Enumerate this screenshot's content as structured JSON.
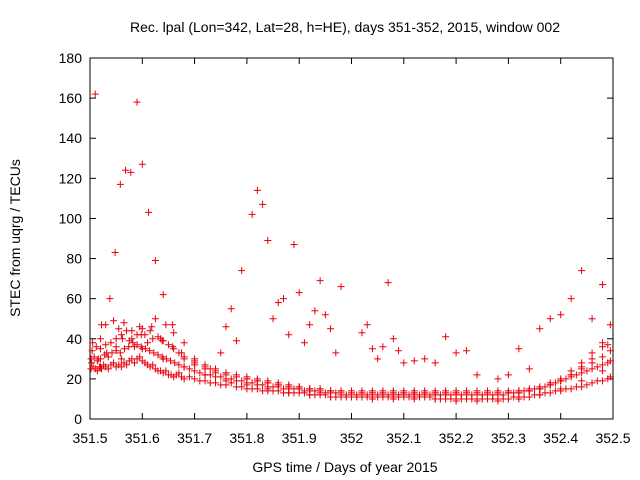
{
  "chart_data": {
    "type": "scatter",
    "title": "Rec. lpal (Lon=342, Lat=28, h=HE), days 351-352, 2015, window 002",
    "xlabel": "GPS time / Days of year 2015",
    "ylabel": "STEC from uqrg / TECUs",
    "xlim": [
      351.5,
      352.5
    ],
    "ylim": [
      0,
      180
    ],
    "x_ticks": [
      "351.5",
      "351.6",
      "351.7",
      "351.8",
      "351.9",
      "352",
      "352.1",
      "352.2",
      "352.3",
      "352.4",
      "352.5"
    ],
    "y_ticks": [
      "0",
      "20",
      "40",
      "60",
      "80",
      "100",
      "120",
      "140",
      "160",
      "180"
    ],
    "grid": false,
    "marker": "+",
    "color": "#e8000b",
    "series": [
      {
        "x": [
          351.502,
          351.506,
          351.51,
          351.514,
          351.518,
          351.522,
          351.526,
          351.53,
          351.535,
          351.54,
          351.545,
          351.55,
          351.555,
          351.56,
          351.565,
          351.57,
          351.575,
          351.58,
          351.585,
          351.59,
          351.595,
          351.6,
          351.605,
          351.61,
          351.615,
          351.62,
          351.625,
          351.63,
          351.635,
          351.64,
          351.645,
          351.65,
          351.655,
          351.66,
          351.665,
          351.67,
          351.675,
          351.68,
          351.69,
          351.7,
          351.71,
          351.72,
          351.73,
          351.74,
          351.75,
          351.76,
          351.77,
          351.78,
          351.79,
          351.8,
          351.81,
          351.82,
          351.83,
          351.84,
          351.85,
          351.86,
          351.87,
          351.88,
          351.89,
          351.9,
          351.91,
          351.92,
          351.93,
          351.94,
          351.95,
          351.96,
          351.97,
          351.98,
          351.99,
          352.0,
          352.01,
          352.02,
          352.03,
          352.04,
          352.05,
          352.06,
          352.07,
          352.08,
          352.09,
          352.1,
          352.11,
          352.12,
          352.13,
          352.14,
          352.15,
          352.16,
          352.17,
          352.18,
          352.19,
          352.2,
          352.21,
          352.22,
          352.23,
          352.24,
          352.25,
          352.26,
          352.27,
          352.28,
          352.29,
          352.3,
          352.31,
          352.32,
          352.33,
          352.34,
          352.35,
          352.36,
          352.37,
          352.38,
          352.39,
          352.4,
          352.41,
          352.42,
          352.43,
          352.44,
          352.45,
          352.46,
          352.47,
          352.48,
          352.49,
          352.495
        ],
        "y": [
          25,
          26,
          25,
          24,
          26,
          25,
          27,
          26,
          25,
          27,
          28,
          26,
          27,
          26,
          28,
          27,
          29,
          30,
          28,
          30,
          31,
          29,
          28,
          27,
          26,
          27,
          25,
          24,
          24,
          23,
          24,
          22,
          22,
          21,
          22,
          23,
          21,
          20,
          21,
          20,
          19,
          19,
          18,
          18,
          17,
          17,
          18,
          16,
          16,
          15,
          15,
          15,
          14,
          14,
          14,
          14,
          13,
          13,
          13,
          13,
          13,
          12,
          12,
          12,
          12,
          11,
          11,
          11,
          11,
          11,
          11,
          11,
          11,
          11,
          11,
          11,
          11,
          11,
          11,
          11,
          11,
          11,
          11,
          11,
          11,
          10,
          10,
          10,
          10,
          10,
          10,
          10,
          10,
          10,
          10,
          10,
          10,
          10,
          10,
          10,
          11,
          11,
          11,
          11,
          12,
          12,
          13,
          13,
          14,
          14,
          15,
          15,
          16,
          16,
          17,
          18,
          19,
          19,
          20,
          21
        ]
      },
      {
        "x": [
          351.502,
          351.508,
          351.514,
          351.52,
          351.528,
          351.535,
          351.542,
          351.55,
          351.558,
          351.566,
          351.574,
          351.582,
          351.59,
          351.598,
          351.606,
          351.614,
          351.622,
          351.63,
          351.638,
          351.646,
          351.654,
          351.662,
          351.67,
          351.68,
          351.69,
          351.7,
          351.71,
          351.72,
          351.73,
          351.74,
          351.75,
          351.76,
          351.77,
          351.78,
          351.79,
          351.8,
          351.81,
          351.82,
          351.83,
          351.84,
          351.85,
          351.86,
          351.87,
          351.88,
          351.89,
          351.9,
          351.91,
          351.92,
          351.93,
          351.94,
          351.95,
          351.96,
          351.97,
          351.98,
          351.99,
          352.0,
          352.01,
          352.02,
          352.03,
          352.04,
          352.05,
          352.06,
          352.07,
          352.08,
          352.09,
          352.1,
          352.11,
          352.12,
          352.13,
          352.14,
          352.15,
          352.16,
          352.17,
          352.18,
          352.19,
          352.2,
          352.21,
          352.22,
          352.23,
          352.24,
          352.25,
          352.26,
          352.27,
          352.28,
          352.29,
          352.3,
          352.31,
          352.32,
          352.33,
          352.34,
          352.35,
          352.36,
          352.37,
          352.38,
          352.39,
          352.4,
          352.41,
          352.42,
          352.43,
          352.44,
          352.45,
          352.46,
          352.47,
          352.48,
          352.49,
          352.495
        ],
        "y": [
          30,
          31,
          29,
          30,
          32,
          31,
          33,
          34,
          33,
          35,
          36,
          38,
          37,
          36,
          35,
          34,
          33,
          32,
          31,
          30,
          29,
          28,
          27,
          26,
          25,
          24,
          23,
          22,
          22,
          21,
          21,
          20,
          20,
          19,
          19,
          18,
          18,
          17,
          17,
          16,
          16,
          16,
          15,
          15,
          15,
          15,
          14,
          14,
          14,
          13,
          13,
          13,
          13,
          12,
          12,
          12,
          12,
          12,
          12,
          12,
          12,
          12,
          12,
          12,
          12,
          12,
          12,
          12,
          12,
          12,
          12,
          12,
          12,
          12,
          12,
          12,
          12,
          12,
          12,
          12,
          12,
          12,
          12,
          12,
          12,
          13,
          13,
          13,
          14,
          14,
          15,
          15,
          16,
          17,
          18,
          19,
          20,
          21,
          22,
          23,
          24,
          25,
          26,
          27,
          28,
          29
        ]
      },
      {
        "x": [
          351.504,
          351.512,
          351.52,
          351.53,
          351.54,
          351.55,
          351.56,
          351.57,
          351.58,
          351.59,
          351.6,
          351.61,
          351.62,
          351.63,
          351.64,
          351.65,
          351.66,
          351.67,
          351.68,
          351.7,
          351.72,
          351.74,
          351.76,
          351.78,
          351.8,
          351.82,
          351.84,
          351.86,
          351.88,
          351.9,
          351.92,
          351.94,
          351.96,
          351.98,
          352.0,
          352.02,
          352.04,
          352.06,
          352.08,
          352.1,
          352.12,
          352.14,
          352.16,
          352.18,
          352.2,
          352.22,
          352.24,
          352.26,
          352.28,
          352.3,
          352.32,
          352.34,
          352.36,
          352.38,
          352.4,
          352.42,
          352.44,
          352.46,
          352.48,
          352.495
        ],
        "y": [
          34,
          36,
          35,
          37,
          38,
          40,
          42,
          44,
          40,
          42,
          45,
          38,
          40,
          41,
          39,
          37,
          35,
          33,
          31,
          29,
          27,
          25,
          23,
          22,
          20,
          19,
          18,
          17,
          16,
          15,
          15,
          14,
          14,
          13,
          13,
          13,
          13,
          13,
          13,
          13,
          13,
          13,
          13,
          13,
          13,
          13,
          13,
          13,
          13,
          13,
          14,
          14,
          15,
          17,
          19,
          22,
          25,
          28,
          31,
          34
        ]
      },
      {
        "x": [
          351.505,
          351.52,
          351.53,
          351.545,
          351.555,
          351.565,
          351.575,
          351.585,
          351.595,
          351.605,
          351.615,
          351.625,
          351.635,
          351.645,
          351.66,
          351.68,
          351.7,
          351.72,
          351.74,
          351.76,
          351.78,
          351.8,
          351.82,
          351.84,
          351.86,
          351.88,
          351.9,
          351.92,
          351.94,
          351.96,
          351.98,
          352.0,
          352.02,
          352.04,
          352.06,
          352.08,
          352.1,
          352.12,
          352.14,
          352.16,
          352.18,
          352.2,
          352.22,
          352.24,
          352.26,
          352.28,
          352.3,
          352.32,
          352.34,
          352.36,
          352.38,
          352.4,
          352.42,
          352.44,
          352.46,
          352.48
        ],
        "y": [
          38,
          40,
          47,
          49,
          45,
          48,
          39,
          36,
          46,
          42,
          44,
          50,
          40,
          47,
          43,
          30,
          27,
          25,
          23,
          22,
          21,
          20,
          19,
          18,
          17,
          16,
          16,
          15,
          15,
          14,
          14,
          14,
          14,
          14,
          14,
          14,
          14,
          14,
          14,
          14,
          14,
          14,
          14,
          14,
          14,
          14,
          14,
          14,
          15,
          16,
          18,
          20,
          24,
          28,
          33,
          38
        ]
      },
      {
        "x": [
          351.51,
          351.522,
          351.538,
          351.548,
          351.558,
          351.568,
          351.578,
          351.59,
          351.6,
          351.612,
          351.625,
          351.64,
          351.658,
          351.68,
          351.7,
          351.73,
          351.75,
          351.76,
          351.77,
          351.78,
          351.79,
          351.81,
          351.82,
          351.83,
          351.84,
          351.85,
          351.86,
          351.87,
          351.88,
          351.89,
          351.9,
          351.91,
          351.92,
          351.93,
          351.94,
          351.95,
          351.96,
          351.97,
          351.98,
          352.02,
          352.03,
          352.04,
          352.05,
          352.06,
          352.07,
          352.08,
          352.09,
          352.1,
          352.12,
          352.14,
          352.16,
          352.18,
          352.2,
          352.22,
          352.24,
          352.28,
          352.3,
          352.32,
          352.34,
          352.36,
          352.38,
          352.4,
          352.42,
          352.44,
          352.46,
          352.48,
          352.49
        ],
        "y": [
          162,
          47,
          60,
          83,
          117,
          124,
          123,
          158,
          127,
          103,
          79,
          62,
          47,
          38,
          30,
          25,
          33,
          46,
          55,
          39,
          74,
          102,
          114,
          107,
          89,
          50,
          58,
          60,
          42,
          87,
          63,
          38,
          47,
          54,
          69,
          52,
          45,
          33,
          66,
          43,
          47,
          35,
          30,
          36,
          68,
          40,
          34,
          28,
          29,
          30,
          28,
          41,
          33,
          34,
          22,
          20,
          22,
          35,
          25,
          45,
          50,
          52,
          60,
          74,
          50,
          67,
          37
        ]
      },
      {
        "x": [
          351.503,
          351.516,
          351.532,
          351.55,
          351.562,
          351.58,
          351.598,
          351.618,
          351.638,
          351.658,
          351.675,
          351.7,
          351.72,
          351.74,
          351.76,
          351.8,
          351.82,
          351.84,
          351.86,
          351.88,
          351.9,
          351.92,
          351.94,
          351.96,
          351.98,
          352.0,
          352.02,
          352.04,
          352.06,
          352.08,
          352.1,
          352.12,
          352.14,
          352.16,
          352.18,
          352.2,
          352.22,
          352.24,
          352.26,
          352.28,
          352.3,
          352.32,
          352.34,
          352.36,
          352.38,
          352.4,
          352.42,
          352.44,
          352.46,
          352.48,
          352.495
        ],
        "y": [
          28,
          30,
          33,
          36,
          40,
          44,
          42,
          46,
          39,
          36,
          33,
          28,
          26,
          24,
          23,
          21,
          20,
          19,
          18,
          17,
          16,
          15,
          15,
          14,
          14,
          13,
          13,
          13,
          13,
          13,
          13,
          13,
          13,
          13,
          13,
          13,
          13,
          13,
          13,
          13,
          13,
          13,
          14,
          15,
          17,
          19,
          22,
          26,
          30,
          36,
          47
        ]
      },
      {
        "x": [
          351.52,
          351.56,
          351.6,
          351.64,
          351.68,
          351.72,
          351.76,
          351.8,
          351.84,
          351.88,
          351.92,
          351.96,
          352.0,
          352.04,
          352.08,
          352.12,
          352.16,
          352.2,
          352.24,
          352.28,
          352.32,
          352.36,
          352.4,
          352.44,
          352.48
        ],
        "y": [
          26,
          30,
          35,
          30,
          26,
          22,
          19,
          17,
          15,
          13,
          12,
          11,
          11,
          10,
          10,
          10,
          10,
          9,
          9,
          9,
          10,
          12,
          15,
          19,
          24
        ]
      }
    ]
  }
}
